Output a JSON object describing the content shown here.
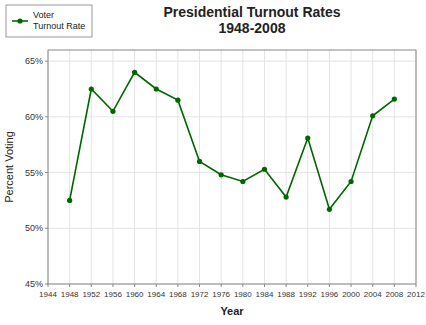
{
  "chart_data": {
    "type": "line",
    "title": "Presidential Turnout Rates\n1948-2008",
    "x_label": "Year",
    "y_label": "Percent Voting",
    "x": [
      1948,
      1952,
      1956,
      1960,
      1964,
      1968,
      1972,
      1976,
      1980,
      1984,
      1988,
      1992,
      1996,
      2000,
      2004,
      2008
    ],
    "series": [
      {
        "name": "Voter\nTurnout Rate",
        "color": "#006600",
        "marker": "circle",
        "values": [
          52.5,
          62.5,
          60.5,
          64.0,
          62.5,
          61.5,
          56.0,
          54.8,
          54.2,
          55.3,
          52.8,
          58.1,
          51.7,
          54.2,
          60.1,
          61.6
        ]
      }
    ],
    "xlim": [
      1944,
      2012
    ],
    "xticks": [
      1944,
      1948,
      1952,
      1956,
      1960,
      1964,
      1968,
      1972,
      1976,
      1980,
      1984,
      1988,
      1992,
      1996,
      2000,
      2004,
      2008,
      2012
    ],
    "ylim": [
      45,
      66
    ],
    "yticks": [
      {
        "value": 45,
        "label": "45%"
      },
      {
        "value": 50,
        "label": "50%"
      },
      {
        "value": 55,
        "label": "55%"
      },
      {
        "value": 60,
        "label": "60%"
      },
      {
        "value": 65,
        "label": "65%"
      }
    ],
    "grid": true,
    "legend": "upper left"
  }
}
